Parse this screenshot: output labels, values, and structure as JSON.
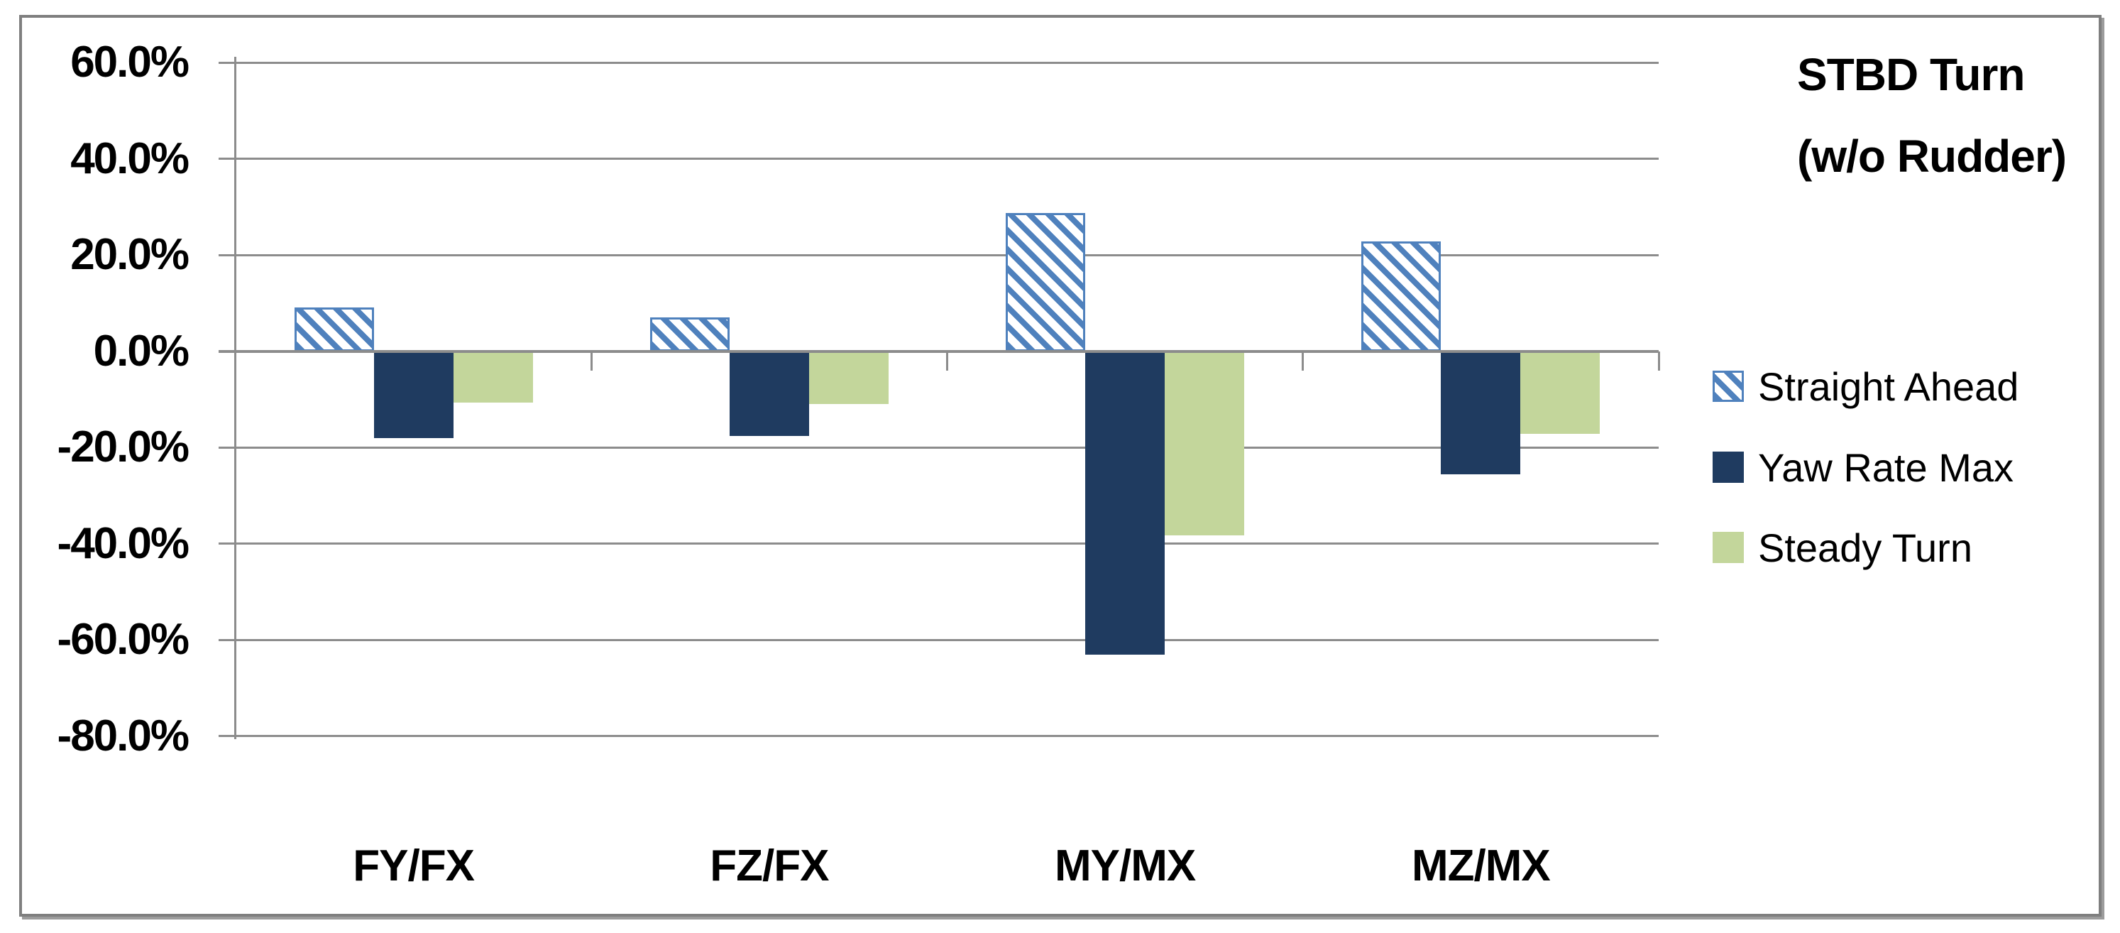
{
  "title": {
    "line1": "STBD Turn",
    "line2": "(w/o Rudder)"
  },
  "legend": [
    {
      "label": "Straight Ahead",
      "swatch": "hatched-blue"
    },
    {
      "label": "Yaw Rate Max",
      "swatch": "navy"
    },
    {
      "label": "Steady Turn",
      "swatch": "light-green"
    }
  ],
  "colors": {
    "hatch_blue": "#4F81BD",
    "navy": "#1F3B60",
    "green": "#C3D69B",
    "gridline": "#8C8C8C",
    "frame": "#7F7F7F",
    "text": "#000000"
  },
  "chart_data": {
    "type": "bar",
    "title": "STBD Turn (w/o Rudder)",
    "categories": [
      "FY/FX",
      "FZ/FX",
      "MY/MX",
      "MZ/MX"
    ],
    "series": [
      {
        "name": "Straight Ahead",
        "style": "hatched-blue",
        "values": [
          9.1,
          7.1,
          28.7,
          22.8
        ]
      },
      {
        "name": "Yaw Rate Max",
        "style": "navy",
        "values": [
          -18.1,
          -17.6,
          -63.1,
          -25.6
        ]
      },
      {
        "name": "Steady Turn",
        "style": "light-green",
        "values": [
          -10.6,
          -11.0,
          -38.2,
          -17.1
        ]
      }
    ],
    "value_unit": "%",
    "ylim": [
      -80,
      60
    ],
    "ytick_step": 20,
    "ytick_labels": [
      "60.0%",
      "40.0%",
      "20.0%",
      "0.0%",
      "-20.0%",
      "-40.0%",
      "-60.0%",
      "-80.0%"
    ],
    "grid": true,
    "legend_position": "right"
  }
}
